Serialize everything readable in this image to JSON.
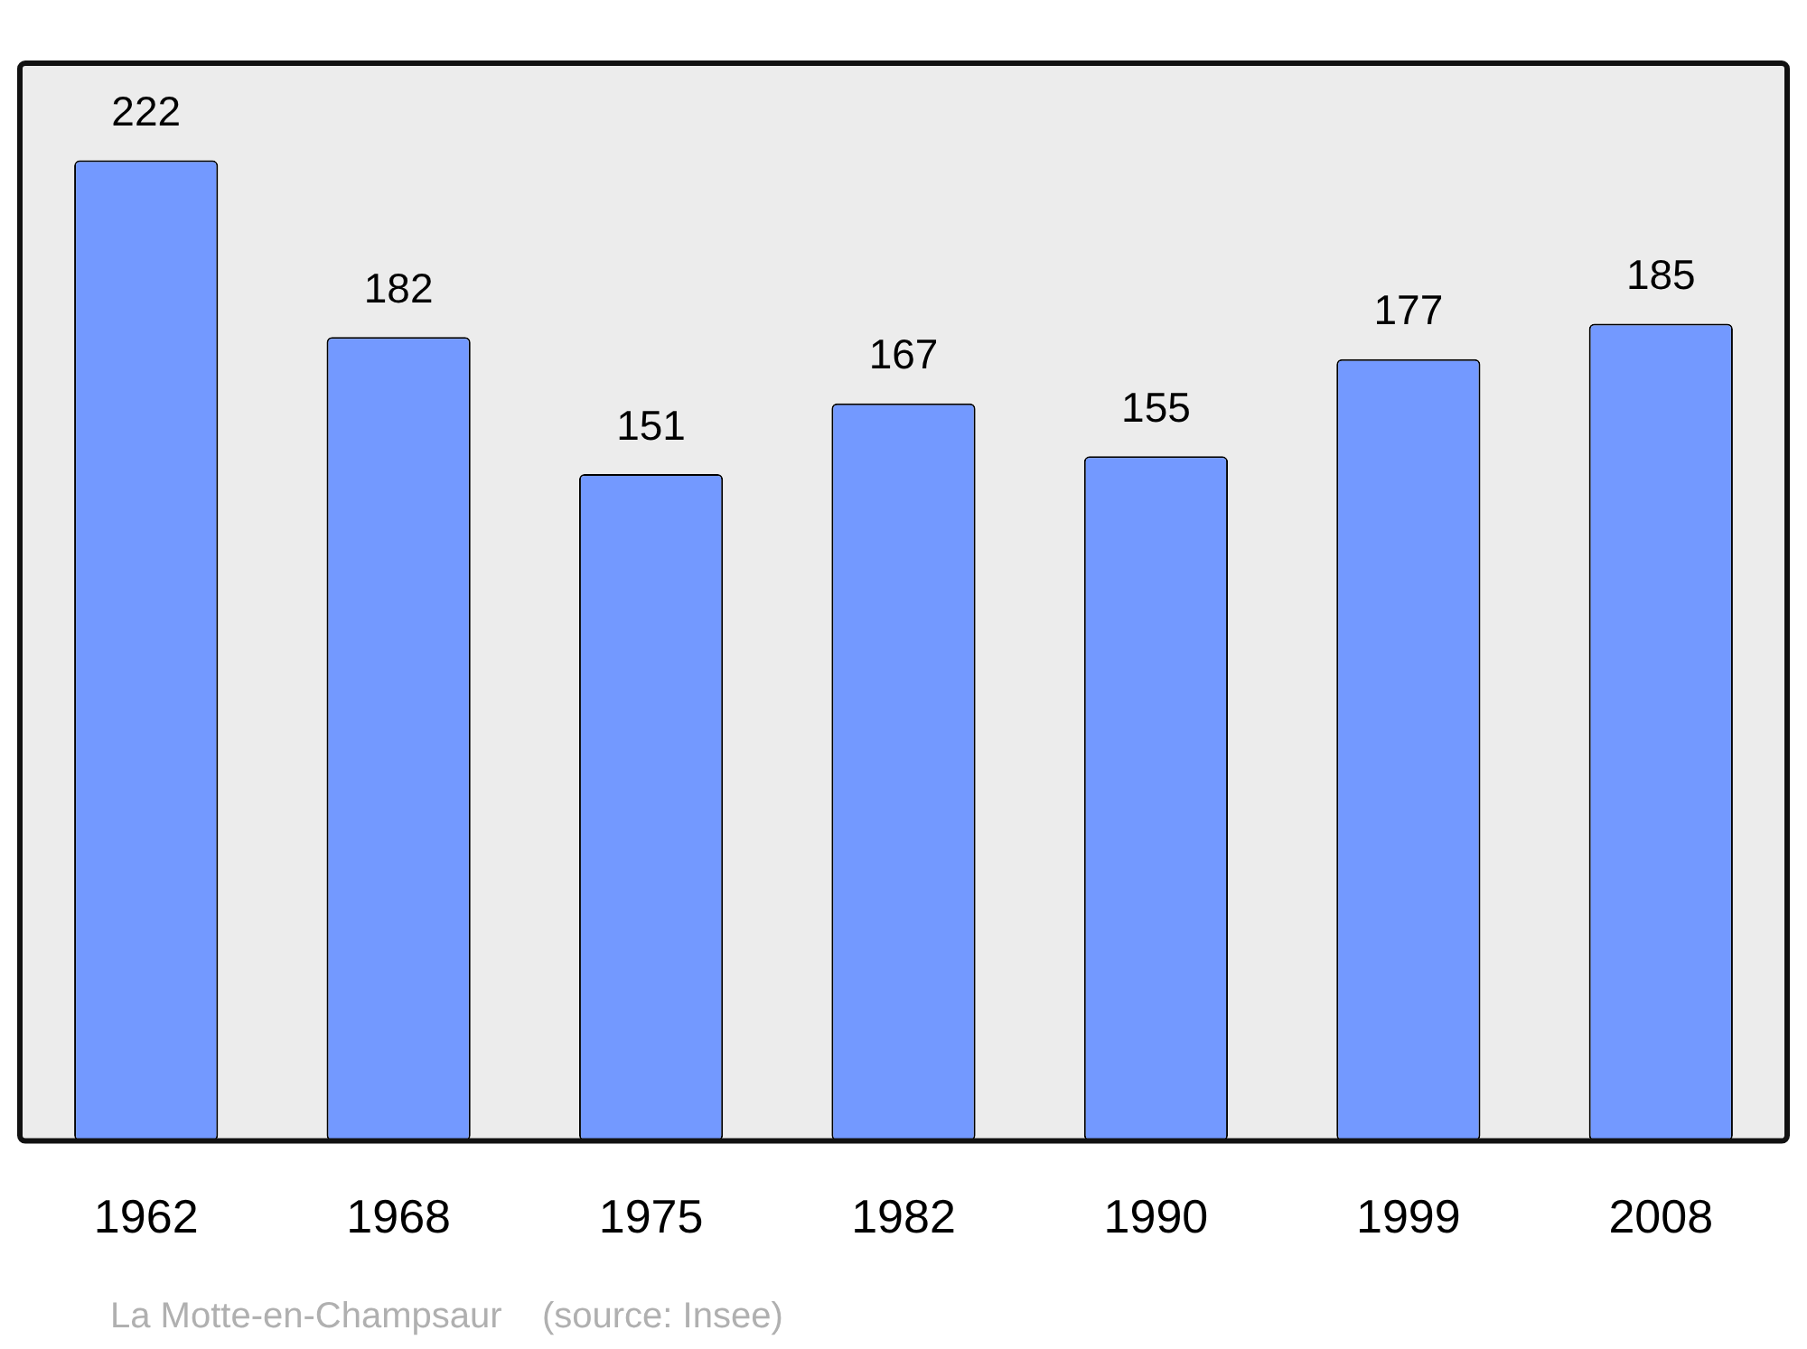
{
  "chart_data": {
    "type": "bar",
    "categories": [
      "1962",
      "1968",
      "1975",
      "1982",
      "1990",
      "1999",
      "2008"
    ],
    "values": [
      222,
      182,
      151,
      167,
      155,
      177,
      185
    ],
    "color": "#7399ff",
    "ylim": [
      0,
      244
    ],
    "tick_labels": "x",
    "data_labels": true,
    "annotations": [
      "La Motte-en-Champsaur    (source: Insee)"
    ]
  }
}
